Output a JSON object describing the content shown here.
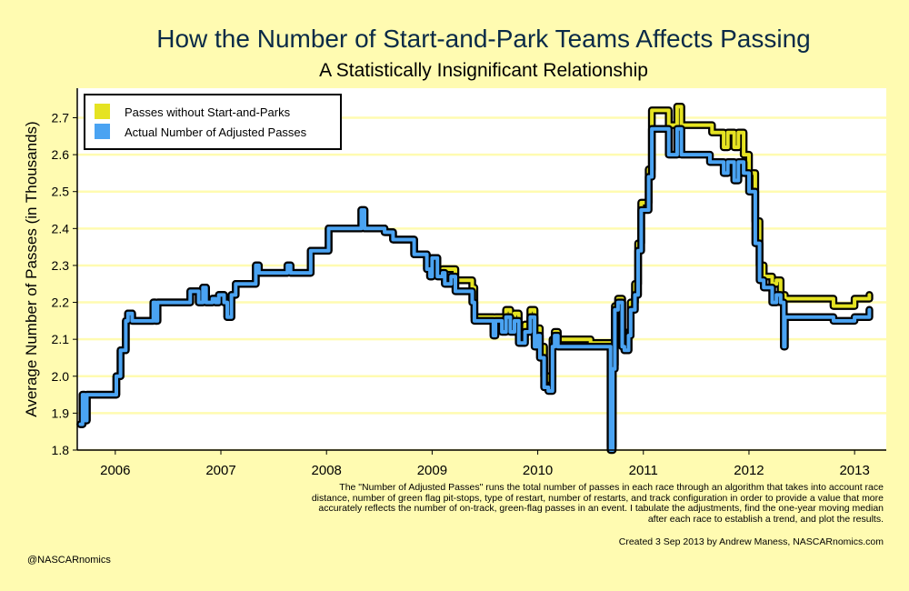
{
  "colors": {
    "background": "#fffbb1",
    "plot_background": "#ffffff",
    "grid": "#fffbb1",
    "title": "#0a2a47",
    "series_without": "#e5e322",
    "series_actual": "#4aa3f2",
    "outline": "#000000"
  },
  "chart_data": {
    "type": "line",
    "title": "How the Number of Start-and-Park Teams Affects Passing",
    "subtitle": "A Statistically Insignificant Relationship",
    "xlabel": "",
    "ylabel": "Average Number of Passes (in Thousands)",
    "xlim": [
      2005.64,
      2013.3
    ],
    "ylim": [
      1.8,
      2.78
    ],
    "x_ticks": [
      2006,
      2007,
      2008,
      2009,
      2010,
      2011,
      2012,
      2013
    ],
    "x_tick_labels": [
      "2006",
      "2007",
      "2008",
      "2009",
      "2010",
      "2011",
      "2012",
      "2013"
    ],
    "y_ticks": [
      1.8,
      1.9,
      2.0,
      2.1,
      2.2,
      2.3,
      2.4,
      2.5,
      2.6,
      2.7
    ],
    "y_tick_labels": [
      "1.8",
      "1.9",
      "2.0",
      "2.1",
      "2.2",
      "2.3",
      "2.4",
      "2.5",
      "2.6",
      "2.7"
    ],
    "grid": true,
    "legend_position": "top-left",
    "series": [
      {
        "name": "Passes without Start-and-Parks",
        "color": "#e5e322",
        "points": [
          [
            2005.67,
            1.87
          ],
          [
            2005.69,
            1.95
          ],
          [
            2005.71,
            1.88
          ],
          [
            2005.73,
            1.95
          ],
          [
            2005.99,
            1.95
          ],
          [
            2006.01,
            2.0
          ],
          [
            2006.05,
            2.07
          ],
          [
            2006.1,
            2.15
          ],
          [
            2006.12,
            2.17
          ],
          [
            2006.15,
            2.17
          ],
          [
            2006.16,
            2.15
          ],
          [
            2006.34,
            2.15
          ],
          [
            2006.36,
            2.2
          ],
          [
            2006.38,
            2.15
          ],
          [
            2006.4,
            2.2
          ],
          [
            2006.68,
            2.2
          ],
          [
            2006.71,
            2.23
          ],
          [
            2006.76,
            2.23
          ],
          [
            2006.79,
            2.2
          ],
          [
            2006.83,
            2.24
          ],
          [
            2006.86,
            2.2
          ],
          [
            2006.92,
            2.21
          ],
          [
            2006.95,
            2.2
          ],
          [
            2006.98,
            2.22
          ],
          [
            2007.03,
            2.2
          ],
          [
            2007.06,
            2.16
          ],
          [
            2007.1,
            2.22
          ],
          [
            2007.14,
            2.25
          ],
          [
            2007.3,
            2.25
          ],
          [
            2007.33,
            2.3
          ],
          [
            2007.36,
            2.28
          ],
          [
            2007.6,
            2.28
          ],
          [
            2007.63,
            2.3
          ],
          [
            2007.66,
            2.28
          ],
          [
            2007.8,
            2.28
          ],
          [
            2007.85,
            2.34
          ],
          [
            2007.97,
            2.34
          ],
          [
            2008.02,
            2.4
          ],
          [
            2008.3,
            2.4
          ],
          [
            2008.33,
            2.45
          ],
          [
            2008.36,
            2.4
          ],
          [
            2008.55,
            2.39
          ],
          [
            2008.63,
            2.37
          ],
          [
            2008.8,
            2.37
          ],
          [
            2008.83,
            2.33
          ],
          [
            2008.9,
            2.33
          ],
          [
            2008.95,
            2.29
          ],
          [
            2008.98,
            2.27
          ],
          [
            2009.0,
            2.32
          ],
          [
            2009.05,
            2.28
          ],
          [
            2009.1,
            2.29
          ],
          [
            2009.18,
            2.29
          ],
          [
            2009.22,
            2.26
          ],
          [
            2009.33,
            2.26
          ],
          [
            2009.38,
            2.24
          ],
          [
            2009.4,
            2.16
          ],
          [
            2009.55,
            2.16
          ],
          [
            2009.58,
            2.12
          ],
          [
            2009.6,
            2.16
          ],
          [
            2009.66,
            2.14
          ],
          [
            2009.7,
            2.18
          ],
          [
            2009.74,
            2.14
          ],
          [
            2009.78,
            2.17
          ],
          [
            2009.82,
            2.11
          ],
          [
            2009.88,
            2.14
          ],
          [
            2009.93,
            2.18
          ],
          [
            2009.97,
            2.1
          ],
          [
            2010.0,
            2.13
          ],
          [
            2010.02,
            2.08
          ],
          [
            2010.06,
            2.0
          ],
          [
            2010.1,
            1.99
          ],
          [
            2010.14,
            2.1
          ],
          [
            2010.16,
            2.12
          ],
          [
            2010.19,
            2.1
          ],
          [
            2010.31,
            2.1
          ],
          [
            2010.45,
            2.1
          ],
          [
            2010.5,
            2.09
          ],
          [
            2010.66,
            2.09
          ],
          [
            2010.69,
            1.81
          ],
          [
            2010.71,
            2.03
          ],
          [
            2010.73,
            2.19
          ],
          [
            2010.76,
            2.21
          ],
          [
            2010.8,
            2.1
          ],
          [
            2010.82,
            2.07
          ],
          [
            2010.86,
            2.12
          ],
          [
            2010.88,
            2.2
          ],
          [
            2010.92,
            2.25
          ],
          [
            2010.95,
            2.36
          ],
          [
            2010.98,
            2.47
          ],
          [
            2011.05,
            2.56
          ],
          [
            2011.08,
            2.72
          ],
          [
            2011.2,
            2.72
          ],
          [
            2011.24,
            2.68
          ],
          [
            2011.32,
            2.73
          ],
          [
            2011.36,
            2.68
          ],
          [
            2011.63,
            2.68
          ],
          [
            2011.65,
            2.66
          ],
          [
            2011.72,
            2.66
          ],
          [
            2011.76,
            2.62
          ],
          [
            2011.8,
            2.66
          ],
          [
            2011.86,
            2.62
          ],
          [
            2011.9,
            2.66
          ],
          [
            2011.95,
            2.6
          ],
          [
            2012.0,
            2.55
          ],
          [
            2012.06,
            2.42
          ],
          [
            2012.1,
            2.3
          ],
          [
            2012.14,
            2.27
          ],
          [
            2012.18,
            2.27
          ],
          [
            2012.22,
            2.25
          ],
          [
            2012.26,
            2.26
          ],
          [
            2012.3,
            2.22
          ],
          [
            2012.34,
            2.21
          ],
          [
            2012.5,
            2.21
          ],
          [
            2012.77,
            2.21
          ],
          [
            2012.8,
            2.19
          ],
          [
            2012.97,
            2.19
          ],
          [
            2013.0,
            2.21
          ],
          [
            2013.1,
            2.21
          ],
          [
            2013.14,
            2.22
          ]
        ]
      },
      {
        "name": "Actual Number of Adjusted Passes",
        "color": "#4aa3f2",
        "points": [
          [
            2005.67,
            1.87
          ],
          [
            2005.69,
            1.95
          ],
          [
            2005.71,
            1.88
          ],
          [
            2005.73,
            1.95
          ],
          [
            2005.99,
            1.95
          ],
          [
            2006.01,
            2.0
          ],
          [
            2006.05,
            2.07
          ],
          [
            2006.1,
            2.15
          ],
          [
            2006.12,
            2.17
          ],
          [
            2006.15,
            2.17
          ],
          [
            2006.16,
            2.15
          ],
          [
            2006.34,
            2.15
          ],
          [
            2006.36,
            2.2
          ],
          [
            2006.38,
            2.15
          ],
          [
            2006.4,
            2.2
          ],
          [
            2006.68,
            2.2
          ],
          [
            2006.71,
            2.23
          ],
          [
            2006.76,
            2.23
          ],
          [
            2006.79,
            2.2
          ],
          [
            2006.83,
            2.24
          ],
          [
            2006.86,
            2.2
          ],
          [
            2006.92,
            2.21
          ],
          [
            2006.95,
            2.2
          ],
          [
            2006.98,
            2.22
          ],
          [
            2007.03,
            2.2
          ],
          [
            2007.06,
            2.16
          ],
          [
            2007.1,
            2.22
          ],
          [
            2007.14,
            2.25
          ],
          [
            2007.3,
            2.25
          ],
          [
            2007.33,
            2.3
          ],
          [
            2007.36,
            2.28
          ],
          [
            2007.6,
            2.28
          ],
          [
            2007.63,
            2.3
          ],
          [
            2007.66,
            2.28
          ],
          [
            2007.8,
            2.28
          ],
          [
            2007.85,
            2.34
          ],
          [
            2007.97,
            2.34
          ],
          [
            2008.02,
            2.4
          ],
          [
            2008.3,
            2.4
          ],
          [
            2008.33,
            2.45
          ],
          [
            2008.36,
            2.4
          ],
          [
            2008.55,
            2.39
          ],
          [
            2008.63,
            2.37
          ],
          [
            2008.8,
            2.37
          ],
          [
            2008.83,
            2.33
          ],
          [
            2008.9,
            2.33
          ],
          [
            2008.95,
            2.29
          ],
          [
            2008.98,
            2.27
          ],
          [
            2009.0,
            2.32
          ],
          [
            2009.05,
            2.27
          ],
          [
            2009.1,
            2.28
          ],
          [
            2009.12,
            2.25
          ],
          [
            2009.18,
            2.27
          ],
          [
            2009.22,
            2.23
          ],
          [
            2009.33,
            2.23
          ],
          [
            2009.38,
            2.2
          ],
          [
            2009.4,
            2.15
          ],
          [
            2009.55,
            2.15
          ],
          [
            2009.58,
            2.11
          ],
          [
            2009.6,
            2.15
          ],
          [
            2009.66,
            2.12
          ],
          [
            2009.7,
            2.16
          ],
          [
            2009.74,
            2.12
          ],
          [
            2009.78,
            2.15
          ],
          [
            2009.82,
            2.09
          ],
          [
            2009.88,
            2.12
          ],
          [
            2009.93,
            2.16
          ],
          [
            2009.97,
            2.08
          ],
          [
            2010.0,
            2.11
          ],
          [
            2010.02,
            2.05
          ],
          [
            2010.06,
            1.97
          ],
          [
            2010.1,
            1.96
          ],
          [
            2010.14,
            2.08
          ],
          [
            2010.16,
            2.11
          ],
          [
            2010.19,
            2.08
          ],
          [
            2010.31,
            2.08
          ],
          [
            2010.45,
            2.08
          ],
          [
            2010.5,
            2.08
          ],
          [
            2010.66,
            2.08
          ],
          [
            2010.69,
            1.8
          ],
          [
            2010.71,
            2.02
          ],
          [
            2010.73,
            2.18
          ],
          [
            2010.76,
            2.2
          ],
          [
            2010.8,
            2.08
          ],
          [
            2010.82,
            2.07
          ],
          [
            2010.86,
            2.11
          ],
          [
            2010.88,
            2.18
          ],
          [
            2010.92,
            2.22
          ],
          [
            2010.95,
            2.34
          ],
          [
            2010.98,
            2.45
          ],
          [
            2011.05,
            2.54
          ],
          [
            2011.08,
            2.67
          ],
          [
            2011.2,
            2.67
          ],
          [
            2011.24,
            2.6
          ],
          [
            2011.32,
            2.67
          ],
          [
            2011.36,
            2.6
          ],
          [
            2011.55,
            2.6
          ],
          [
            2011.63,
            2.58
          ],
          [
            2011.72,
            2.58
          ],
          [
            2011.76,
            2.55
          ],
          [
            2011.8,
            2.58
          ],
          [
            2011.86,
            2.53
          ],
          [
            2011.9,
            2.58
          ],
          [
            2011.95,
            2.55
          ],
          [
            2012.0,
            2.5
          ],
          [
            2012.06,
            2.36
          ],
          [
            2012.1,
            2.26
          ],
          [
            2012.14,
            2.24
          ],
          [
            2012.18,
            2.24
          ],
          [
            2012.22,
            2.2
          ],
          [
            2012.26,
            2.22
          ],
          [
            2012.3,
            2.2
          ],
          [
            2012.33,
            2.08
          ],
          [
            2012.34,
            2.16
          ],
          [
            2012.5,
            2.16
          ],
          [
            2012.77,
            2.16
          ],
          [
            2012.8,
            2.15
          ],
          [
            2012.97,
            2.15
          ],
          [
            2013.0,
            2.16
          ],
          [
            2013.1,
            2.16
          ],
          [
            2013.14,
            2.18
          ]
        ]
      }
    ]
  },
  "footer": {
    "note": "The \"Number of Adjusted Passes\" runs the total number of passes in each race through an algorithm that takes into account race distance, number of green flag pit-stops, type of restart, number of restarts, and track configuration in order to provide a value that more accurately reflects the number of on-track, green-flag passes in an event. I tabulate the adjustments, find the one-year moving median after each race to establish a trend, and plot the results.",
    "credit": "Created 3 Sep 2013 by Andrew Maness, NASCARnomics.com",
    "handle": "@NASCARnomics"
  }
}
